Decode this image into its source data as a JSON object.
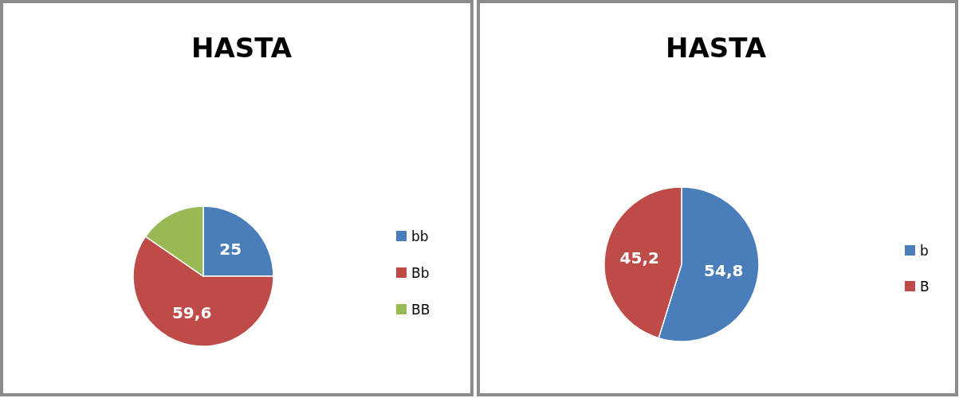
{
  "chart_data": [
    {
      "type": "pie",
      "title": "HASTA",
      "categories": [
        "bb",
        "Bb",
        "BB"
      ],
      "values": [
        25,
        59.6,
        15.4
      ],
      "colors": [
        "#4a7ebb",
        "#be4b48",
        "#98b954"
      ],
      "value_labels": [
        "25",
        "59,6",
        null
      ],
      "legend": "right"
    },
    {
      "type": "pie",
      "title": "HASTA",
      "categories": [
        "b",
        "B"
      ],
      "values": [
        54.8,
        45.2
      ],
      "colors": [
        "#4a7ebb",
        "#be4b48"
      ],
      "value_labels": [
        "54,8",
        "45,2"
      ],
      "legend": "right"
    }
  ]
}
